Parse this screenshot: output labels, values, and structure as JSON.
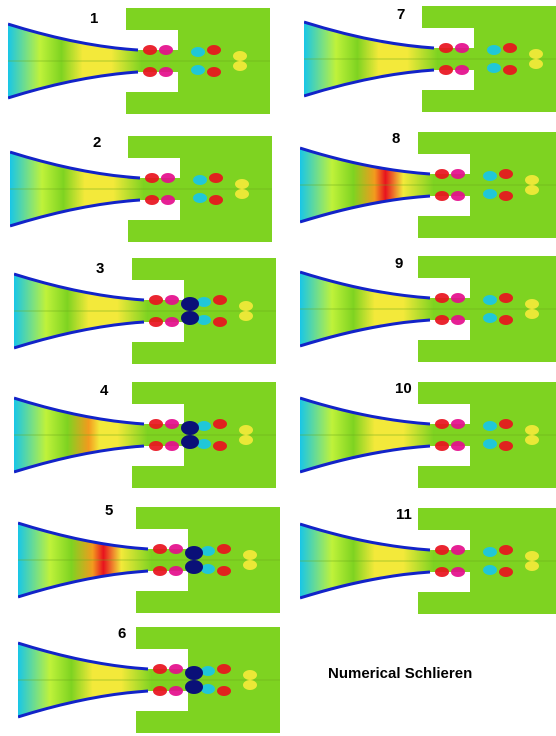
{
  "caption": "Numerical Schlieren",
  "frames": [
    {
      "label": "1"
    },
    {
      "label": "2"
    },
    {
      "label": "3"
    },
    {
      "label": "4"
    },
    {
      "label": "5"
    },
    {
      "label": "6"
    },
    {
      "label": "7"
    },
    {
      "label": "8"
    },
    {
      "label": "9"
    },
    {
      "label": "10"
    },
    {
      "label": "11"
    }
  ],
  "colors": {
    "background": "#7ed321",
    "light": "#bff23a",
    "yellow": "#f3e93a",
    "orange": "#f39a1e",
    "red": "#e8121e",
    "magenta": "#e40d8c",
    "cyan": "#18c6e8",
    "blue": "#1223c8",
    "navy": "#0a1078"
  }
}
